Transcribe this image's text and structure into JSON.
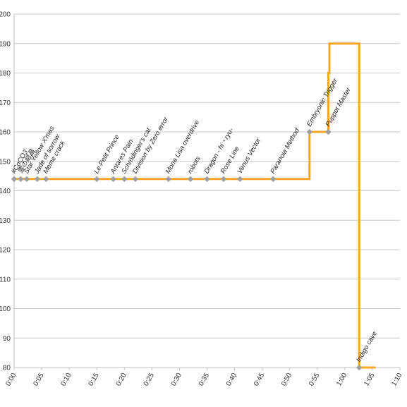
{
  "chart_data": {
    "type": "line",
    "title": "",
    "xlabel": "",
    "ylabel": "",
    "xlim": [
      0,
      70
    ],
    "ylim": [
      80,
      200
    ],
    "y_ticks": [
      80,
      90,
      100,
      110,
      120,
      130,
      140,
      150,
      160,
      170,
      180,
      190,
      200
    ],
    "x_ticks": [
      {
        "v": 0,
        "label": "0:00"
      },
      {
        "v": 5,
        "label": "0:05"
      },
      {
        "v": 10,
        "label": "0:10"
      },
      {
        "v": 15,
        "label": "0:15"
      },
      {
        "v": 20,
        "label": "0:20"
      },
      {
        "v": 25,
        "label": "0:25"
      },
      {
        "v": 30,
        "label": "0:30"
      },
      {
        "v": 35,
        "label": "0:35"
      },
      {
        "v": 40,
        "label": "0:40"
      },
      {
        "v": 45,
        "label": "0:45"
      },
      {
        "v": 50,
        "label": "0:50"
      },
      {
        "v": 55,
        "label": "0:55"
      },
      {
        "v": 60,
        "label": "1:00"
      },
      {
        "v": 65,
        "label": "1:05"
      },
      {
        "v": 70,
        "label": "1:10"
      }
    ],
    "grid": true,
    "series": [
      {
        "color": "#f5a623",
        "points": [
          [
            0,
            144
          ],
          [
            53.6,
            144
          ],
          [
            53.6,
            160
          ],
          [
            57.0,
            160
          ],
          [
            57.0,
            180
          ],
          [
            57.2,
            180
          ],
          [
            57.2,
            190
          ],
          [
            62.6,
            190
          ],
          [
            62.6,
            80
          ],
          [
            65.6,
            80
          ]
        ]
      }
    ],
    "markers": [
      {
        "x": 0,
        "y": 144,
        "label": "#CoCO3"
      },
      {
        "x": 1.2,
        "y": 144,
        "label": "雪の結晶"
      },
      {
        "x": 2.3,
        "y": 144,
        "label": "Star Yellow X'mas"
      },
      {
        "x": 4.2,
        "y": 144,
        "label": "Jade of sorrow"
      },
      {
        "x": 5.8,
        "y": 144,
        "label": "Meme crack"
      },
      {
        "x": 15.0,
        "y": 144,
        "label": "Le Petit Prince"
      },
      {
        "x": 18.0,
        "y": 144,
        "label": "Antares Pain"
      },
      {
        "x": 20.0,
        "y": 144,
        "label": "Schrödinger's cat"
      },
      {
        "x": 22.0,
        "y": 144,
        "label": "Division by Zero error"
      },
      {
        "x": 28.0,
        "y": 144,
        "label": "Mona Lisa overdrive"
      },
      {
        "x": 32.0,
        "y": 144,
        "label": "robots"
      },
      {
        "x": 35.0,
        "y": 144,
        "label": "Dragon - hi・ryu-"
      },
      {
        "x": 38.0,
        "y": 144,
        "label": "Rose Line"
      },
      {
        "x": 41.0,
        "y": 144,
        "label": "Venus Vector"
      },
      {
        "x": 47.0,
        "y": 144,
        "label": "Paranoia Method"
      },
      {
        "x": 53.6,
        "y": 160,
        "label": "Embryonic Trigger"
      },
      {
        "x": 57.0,
        "y": 160,
        "label": "Puppet Master"
      },
      {
        "x": 62.6,
        "y": 80,
        "label": "Indigo cave"
      }
    ],
    "marker_color": "#9e9e9e"
  }
}
